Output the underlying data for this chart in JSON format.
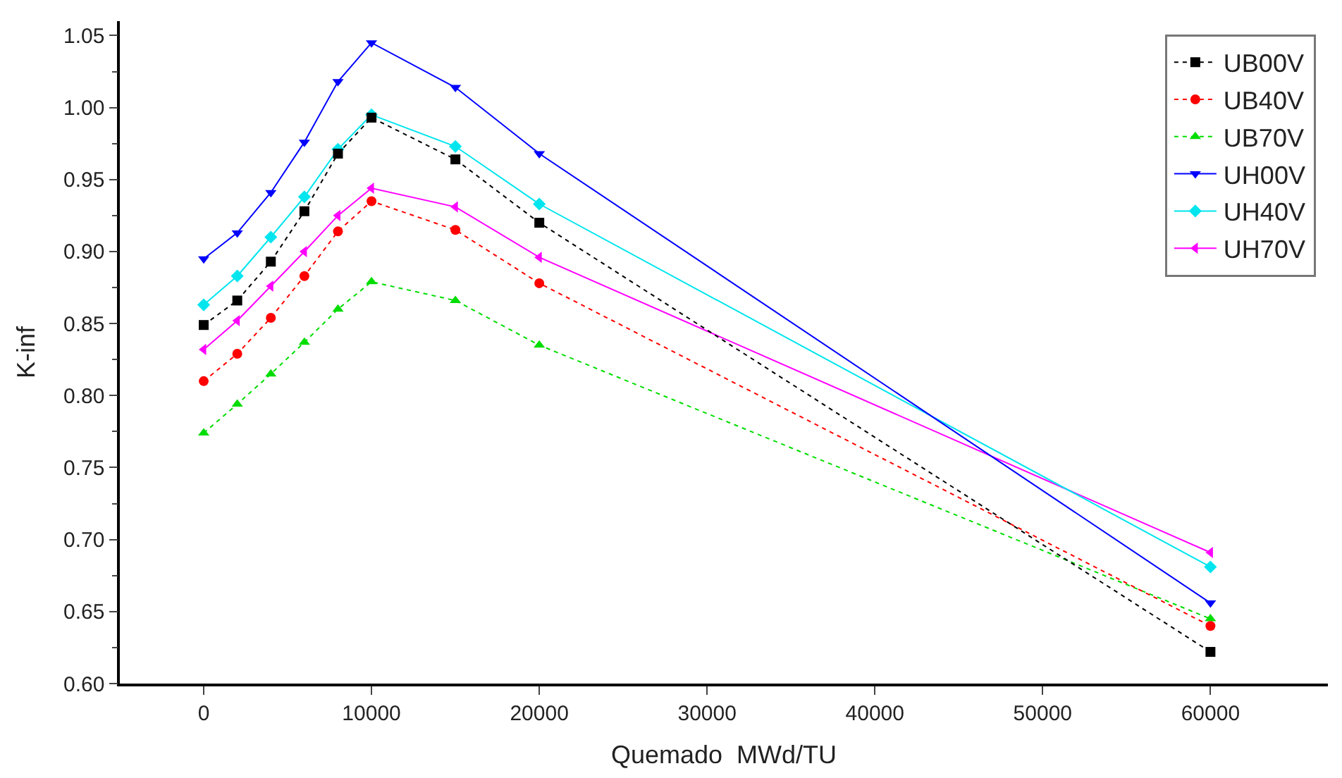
{
  "chart_data": {
    "type": "line",
    "xlabel": "Quemado  MWd/TU",
    "ylabel": "K-inf",
    "x": [
      0,
      2000,
      4000,
      6000,
      8000,
      10000,
      15000,
      20000,
      60000
    ],
    "series": [
      {
        "name": "UB00V",
        "color": "#000000",
        "marker": "square",
        "line_style": "dotted",
        "values": [
          0.849,
          0.866,
          0.893,
          0.928,
          0.968,
          0.993,
          0.964,
          0.92,
          0.622
        ]
      },
      {
        "name": "UB40V",
        "color": "#ff0000",
        "marker": "circle",
        "line_style": "dotted",
        "values": [
          0.81,
          0.829,
          0.854,
          0.883,
          0.914,
          0.935,
          0.915,
          0.878,
          0.64
        ]
      },
      {
        "name": "UB70V",
        "color": "#00dd00",
        "marker": "triangle",
        "line_style": "dotted",
        "values": [
          0.774,
          0.794,
          0.815,
          0.837,
          0.86,
          0.879,
          0.866,
          0.835,
          0.645
        ]
      },
      {
        "name": "UH00V",
        "color": "#0000ff",
        "marker": "triangle-down",
        "line_style": "solid",
        "values": [
          0.895,
          0.913,
          0.941,
          0.976,
          1.018,
          1.045,
          1.014,
          0.968,
          0.656
        ]
      },
      {
        "name": "UH40V",
        "color": "#00e5ee",
        "marker": "diamond",
        "line_style": "solid",
        "values": [
          0.863,
          0.883,
          0.91,
          0.938,
          0.971,
          0.995,
          0.973,
          0.933,
          0.681
        ]
      },
      {
        "name": "UH70V",
        "color": "#ff00ff",
        "marker": "triangle-left",
        "line_style": "solid",
        "values": [
          0.832,
          0.852,
          0.876,
          0.9,
          0.925,
          0.944,
          0.931,
          0.896,
          0.691
        ]
      }
    ],
    "xlim": [
      -5000,
      67000
    ],
    "xticks": [
      0,
      10000,
      20000,
      30000,
      40000,
      50000,
      60000
    ],
    "ylim": [
      0.6,
      1.06
    ],
    "yticks": [
      {
        "value": 0.6,
        "label": "0.60"
      },
      {
        "value": 0.65,
        "label": "0.65"
      },
      {
        "value": 0.7,
        "label": "0.70"
      },
      {
        "value": 0.75,
        "label": "0.75"
      },
      {
        "value": 0.8,
        "label": "0.80"
      },
      {
        "value": 0.85,
        "label": "0.85"
      },
      {
        "value": 0.9,
        "label": "0.90"
      },
      {
        "value": 0.95,
        "label": "0.95"
      },
      {
        "value": 1.0,
        "label": "1.00"
      },
      {
        "value": 1.05,
        "label": "1.05"
      }
    ],
    "grid": false,
    "legend": "top right"
  }
}
